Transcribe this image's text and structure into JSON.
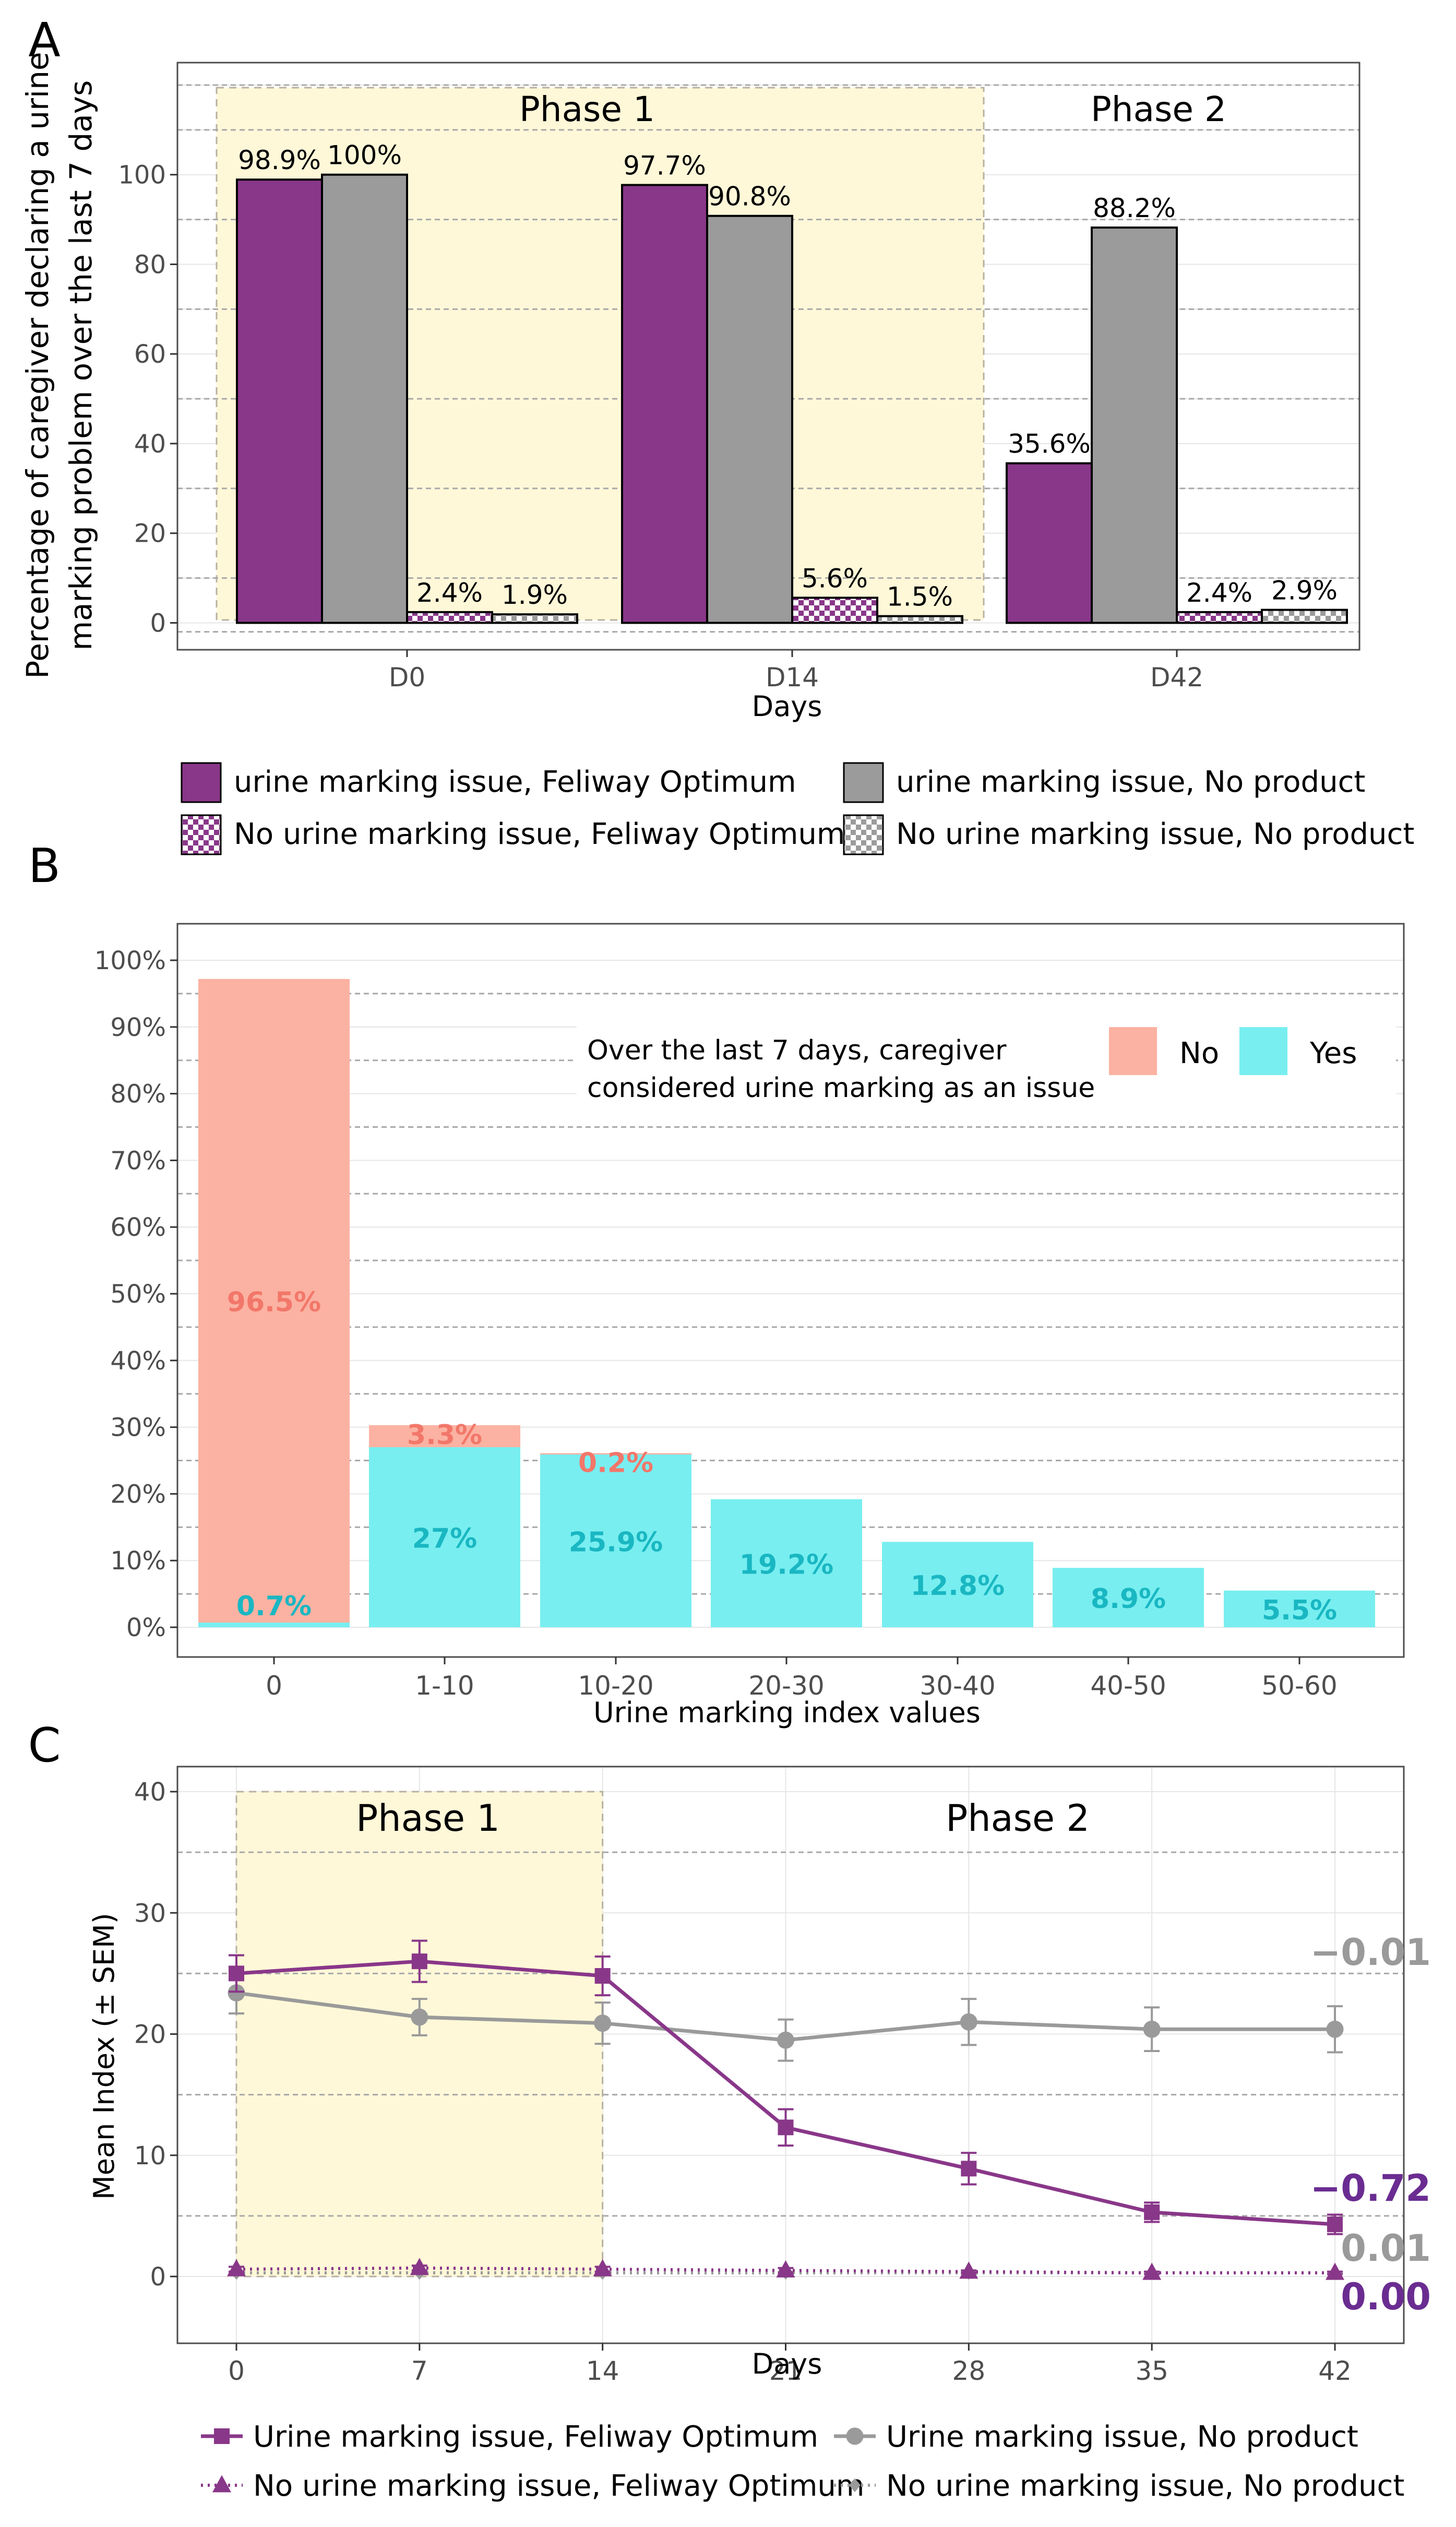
{
  "colors": {
    "purple": "#893789",
    "purple_dark": "#6a2c91",
    "gray_bar": "#9b9b9b",
    "gray_line": "#9a9a9a",
    "phase_fill": "#fff8d8",
    "salmon": "#fbb2a2",
    "salmon_text": "#f2776a",
    "cyan": "#78eef0",
    "cyan_text": "#19b7c2",
    "grid": "#b5b5b5",
    "axis_text": "#4d4d4d"
  },
  "chart_data": [
    {
      "panel": "A",
      "type": "bar",
      "xlabel": "Days",
      "ylabel": "Percentage of caregiver declaring a urine marking problem over the last 7 days",
      "ylim": [
        -6,
        125
      ],
      "yticks": [
        0,
        20,
        40,
        60,
        80,
        100
      ],
      "categories": [
        "D0",
        "D14",
        "D42"
      ],
      "phase_labels": [
        "Phase 1",
        "Phase 2"
      ],
      "series": [
        {
          "name": "urine marking issue, Feliway Optimum",
          "values": [
            98.9,
            97.7,
            35.6
          ],
          "labels": [
            "98.9%",
            "97.7%",
            "35.6%"
          ],
          "pattern": "solid-purple"
        },
        {
          "name": "urine marking issue, No product",
          "values": [
            100,
            90.8,
            88.2
          ],
          "labels": [
            "100%",
            "90.8%",
            "88.2%"
          ],
          "pattern": "solid-gray"
        },
        {
          "name": "No urine marking issue, Feliway Optimum",
          "values": [
            2.4,
            5.6,
            2.4
          ],
          "labels": [
            "2.4%",
            "5.6%",
            "2.4%"
          ],
          "pattern": "checker-purple"
        },
        {
          "name": "No urine marking issue, No product",
          "values": [
            1.9,
            1.5,
            2.9
          ],
          "labels": [
            "1.9%",
            "1.5%",
            "2.9%"
          ],
          "pattern": "checker-gray"
        }
      ]
    },
    {
      "panel": "B",
      "type": "bar",
      "stacked": true,
      "xlabel": "Urine marking index values",
      "ylabel": "",
      "ylim": [
        0,
        100
      ],
      "yticks": [
        "0%",
        "10%",
        "20%",
        "30%",
        "40%",
        "50%",
        "60%",
        "70%",
        "80%",
        "90%",
        "100%"
      ],
      "categories": [
        "0",
        "1-10",
        "10-20",
        "20-30",
        "30-40",
        "40-50",
        "50-60"
      ],
      "legend_title_line1": "Over the last 7 days, caregiver",
      "legend_title_line2": "considered urine marking as an issue",
      "series": [
        {
          "name": "No",
          "values": [
            96.5,
            3.3,
            0.2,
            0,
            0,
            0,
            0
          ],
          "labels": [
            "96.5%",
            "3.3%",
            "0.2%",
            "",
            "",
            "",
            ""
          ]
        },
        {
          "name": "Yes",
          "values": [
            0.7,
            27,
            25.9,
            19.2,
            12.8,
            8.9,
            5.5
          ],
          "labels": [
            "0.7%",
            "27%",
            "25.9%",
            "19.2%",
            "12.8%",
            "8.9%",
            "5.5%"
          ]
        }
      ]
    },
    {
      "panel": "C",
      "type": "line",
      "xlabel": "Days",
      "ylabel": "Mean Index (± SEM)",
      "x": [
        0,
        7,
        14,
        21,
        28,
        35,
        42
      ],
      "xlim": [
        -2.3,
        44.5
      ],
      "ylim": [
        -2,
        41
      ],
      "yticks": [
        0,
        10,
        20,
        30,
        40
      ],
      "phase_labels": [
        "Phase 1",
        "Phase 2"
      ],
      "series": [
        {
          "name": "Urine marking issue, Feliway Optimum",
          "values": [
            25.0,
            26.0,
            24.8,
            12.3,
            8.9,
            5.3,
            4.3
          ],
          "sem": [
            1.5,
            1.7,
            1.6,
            1.5,
            1.3,
            0.8,
            0.8
          ],
          "end_label": "−0.72",
          "style": "solid-purple-square"
        },
        {
          "name": "Urine marking issue, No product",
          "values": [
            23.4,
            21.4,
            20.9,
            19.5,
            21.0,
            20.4,
            20.4
          ],
          "sem": [
            1.7,
            1.5,
            1.7,
            1.7,
            1.9,
            1.8,
            1.9
          ],
          "end_label": "−0.01",
          "style": "solid-gray-circle"
        },
        {
          "name": "No urine marking issue, Feliway Optimum",
          "values": [
            0.6,
            0.7,
            0.6,
            0.5,
            0.4,
            0.3,
            0.3
          ],
          "sem": [
            0.2,
            0.2,
            0.2,
            0.2,
            0.1,
            0.1,
            0.1
          ],
          "end_label": "0.00",
          "style": "dotted-purple-triangle"
        },
        {
          "name": "No urine marking issue, No product",
          "values": [
            0.3,
            0.3,
            0.3,
            0.3,
            0.3,
            0.3,
            0.3
          ],
          "sem": [
            0.1,
            0.1,
            0.1,
            0.1,
            0.1,
            0.1,
            0.1
          ],
          "end_label": "0.01",
          "style": "dotted-gray-diamond"
        }
      ]
    }
  ]
}
